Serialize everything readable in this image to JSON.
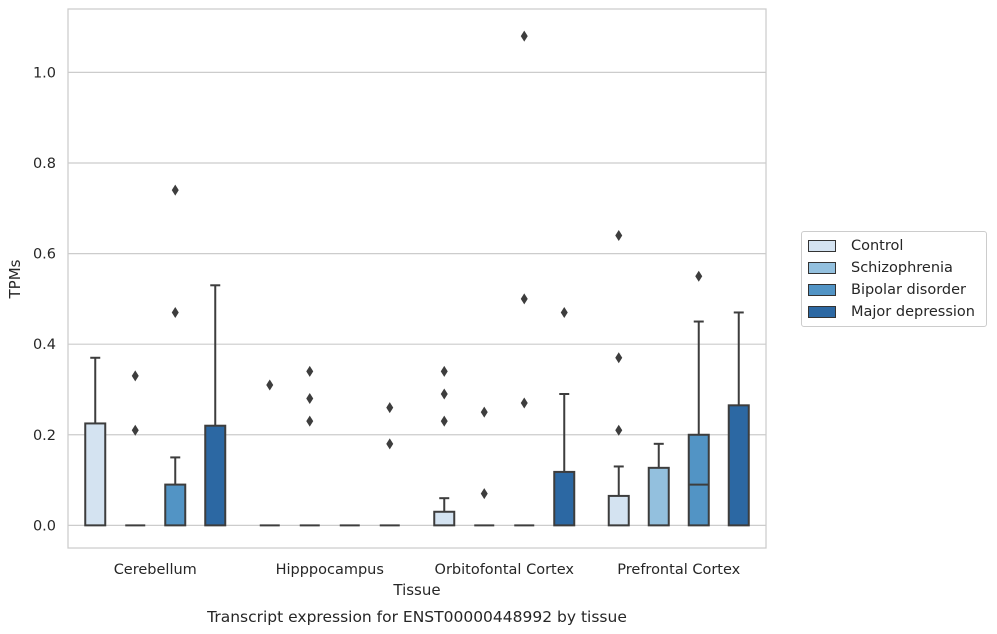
{
  "chart_data": {
    "type": "bar",
    "title": "Transcript expression for ENST00000448992 by tissue",
    "xlabel": "Tissue",
    "ylabel": "TPMs",
    "ylim": [
      -0.05,
      1.14
    ],
    "yticks": [
      "0.0",
      "0.2",
      "0.4",
      "0.6",
      "0.8",
      "1.0"
    ],
    "grid": "horizontal",
    "legend_position": "right",
    "categories": [
      "Cerebellum",
      "Hipppocampus",
      "Orbitofontal Cortex",
      "Prefrontal Cortex"
    ],
    "series": [
      {
        "name": "Control",
        "color": "#d4e3f1",
        "values": [
          0.225,
          0.0,
          0.03,
          0.065
        ],
        "whisker_high": [
          0.37,
          0.0,
          0.06,
          0.13
        ],
        "median": [
          null,
          null,
          null,
          null
        ],
        "outliers": [
          [],
          [
            0.31
          ],
          [
            0.34,
            0.29,
            0.23
          ],
          [
            0.64,
            0.37,
            0.21
          ]
        ]
      },
      {
        "name": "Schizophrenia",
        "color": "#93c0de",
        "values": [
          0.0,
          0.0,
          0.0,
          0.127
        ],
        "whisker_high": [
          0.0,
          0.0,
          0.0,
          0.18
        ],
        "median": [
          null,
          null,
          null,
          null
        ],
        "outliers": [
          [
            0.33,
            0.21
          ],
          [
            0.34,
            0.28,
            0.23
          ],
          [
            0.25,
            0.07
          ],
          []
        ]
      },
      {
        "name": "Bipolar disorder",
        "color": "#5294c5",
        "values": [
          0.09,
          0.0,
          0.0,
          0.2
        ],
        "whisker_high": [
          0.15,
          0.0,
          0.0,
          0.45
        ],
        "median": [
          null,
          null,
          null,
          0.09
        ],
        "outliers": [
          [
            0.74,
            0.47
          ],
          [],
          [
            1.08,
            0.5,
            0.27
          ],
          [
            0.55
          ]
        ]
      },
      {
        "name": "Major depression",
        "color": "#2c68a3",
        "values": [
          0.22,
          0.0,
          0.118,
          0.265
        ],
        "whisker_high": [
          0.53,
          0.0,
          0.29,
          0.47
        ],
        "median": [
          null,
          null,
          null,
          null
        ],
        "outliers": [
          [],
          [
            0.26,
            0.18
          ],
          [
            0.47
          ],
          []
        ]
      }
    ]
  }
}
